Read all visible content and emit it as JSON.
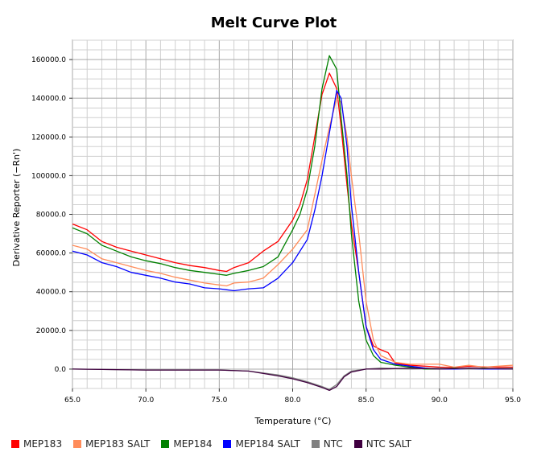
{
  "chart_data": {
    "type": "line",
    "title": "Melt Curve Plot",
    "xlabel": "Temperature (°C)",
    "ylabel": "Derivative Reporter (−Rn')",
    "xlim": [
      65.0,
      95.0
    ],
    "ylim": [
      -10000,
      170000
    ],
    "x_ticks": [
      "65.0",
      "70.0",
      "75.0",
      "80.0",
      "85.0",
      "90.0",
      "95.0"
    ],
    "y_ticks": [
      "0.0",
      "20000.0",
      "40000.0",
      "60000.0",
      "80000.0",
      "100000.0",
      "120000.0",
      "140000.0",
      "160000.0"
    ],
    "grid": true,
    "legend_position": "bottom",
    "series": [
      {
        "name": "MEP183",
        "color": "#ff0000",
        "points": [
          [
            65,
            75000
          ],
          [
            66,
            72000
          ],
          [
            67,
            66000
          ],
          [
            68,
            63000
          ],
          [
            69,
            61000
          ],
          [
            70,
            59000
          ],
          [
            71,
            57000
          ],
          [
            72,
            55000
          ],
          [
            73,
            53500
          ],
          [
            74,
            52500
          ],
          [
            75,
            51000
          ],
          [
            75.5,
            50500
          ],
          [
            76,
            52500
          ],
          [
            77,
            55000
          ],
          [
            78,
            61000
          ],
          [
            79,
            66000
          ],
          [
            80,
            77000
          ],
          [
            80.5,
            85000
          ],
          [
            81,
            98000
          ],
          [
            81.5,
            120000
          ],
          [
            82,
            142000
          ],
          [
            82.5,
            153000
          ],
          [
            83,
            145000
          ],
          [
            83.3,
            125000
          ],
          [
            83.7,
            95000
          ],
          [
            84,
            75000
          ],
          [
            84.5,
            50000
          ],
          [
            85,
            22000
          ],
          [
            85.5,
            12000
          ],
          [
            86,
            10000
          ],
          [
            86.5,
            8500
          ],
          [
            87,
            3000
          ],
          [
            88,
            2000
          ],
          [
            89,
            1500
          ],
          [
            90,
            1000
          ],
          [
            91,
            800
          ],
          [
            92,
            1500
          ],
          [
            93,
            1200
          ],
          [
            94,
            1000
          ],
          [
            95,
            1000
          ]
        ]
      },
      {
        "name": "MEP183 SALT",
        "color": "#ff8c5a",
        "points": [
          [
            65,
            64000
          ],
          [
            66,
            62000
          ],
          [
            67,
            57000
          ],
          [
            68,
            55000
          ],
          [
            69,
            53000
          ],
          [
            70,
            51000
          ],
          [
            71,
            49500
          ],
          [
            72,
            47500
          ],
          [
            73,
            46000
          ],
          [
            74,
            44500
          ],
          [
            75,
            43500
          ],
          [
            75.5,
            43000
          ],
          [
            76,
            44500
          ],
          [
            77,
            45000
          ],
          [
            78,
            47000
          ],
          [
            79,
            54000
          ],
          [
            80,
            62000
          ],
          [
            81,
            72000
          ],
          [
            81.5,
            90000
          ],
          [
            82,
            108000
          ],
          [
            82.5,
            125000
          ],
          [
            83,
            140000
          ],
          [
            83.3,
            138000
          ],
          [
            83.7,
            120000
          ],
          [
            84,
            100000
          ],
          [
            84.5,
            70000
          ],
          [
            85,
            35000
          ],
          [
            85.5,
            15000
          ],
          [
            86,
            7000
          ],
          [
            87,
            3500
          ],
          [
            88,
            2500
          ],
          [
            89,
            2500
          ],
          [
            90,
            2500
          ],
          [
            91,
            1000
          ],
          [
            92,
            2000
          ],
          [
            93,
            1000
          ],
          [
            94,
            1500
          ],
          [
            95,
            2000
          ]
        ]
      },
      {
        "name": "MEP184",
        "color": "#008000",
        "points": [
          [
            65,
            73000
          ],
          [
            66,
            70000
          ],
          [
            67,
            64000
          ],
          [
            68,
            61000
          ],
          [
            69,
            58000
          ],
          [
            70,
            56000
          ],
          [
            71,
            54500
          ],
          [
            72,
            52500
          ],
          [
            73,
            51000
          ],
          [
            74,
            50000
          ],
          [
            75,
            49000
          ],
          [
            75.5,
            48500
          ],
          [
            76,
            49500
          ],
          [
            77,
            51000
          ],
          [
            78,
            53000
          ],
          [
            79,
            58000
          ],
          [
            80,
            72000
          ],
          [
            80.5,
            80000
          ],
          [
            81,
            93000
          ],
          [
            81.5,
            115000
          ],
          [
            82,
            145000
          ],
          [
            82.5,
            162000
          ],
          [
            83,
            155000
          ],
          [
            83.3,
            130000
          ],
          [
            83.7,
            100000
          ],
          [
            84,
            70000
          ],
          [
            84.5,
            35000
          ],
          [
            85,
            15000
          ],
          [
            85.5,
            7000
          ],
          [
            86,
            3500
          ],
          [
            87,
            2000
          ],
          [
            88,
            1000
          ],
          [
            89,
            0
          ],
          [
            90,
            0
          ],
          [
            91,
            500
          ],
          [
            92,
            0
          ],
          [
            93,
            500
          ],
          [
            94,
            0
          ],
          [
            95,
            0
          ]
        ]
      },
      {
        "name": "MEP184 SALT",
        "color": "#0000ff",
        "points": [
          [
            65,
            61000
          ],
          [
            66,
            59000
          ],
          [
            67,
            55000
          ],
          [
            68,
            53000
          ],
          [
            69,
            50000
          ],
          [
            70,
            48500
          ],
          [
            71,
            47000
          ],
          [
            72,
            45000
          ],
          [
            73,
            44000
          ],
          [
            74,
            42000
          ],
          [
            75,
            41500
          ],
          [
            75.5,
            41000
          ],
          [
            76,
            40500
          ],
          [
            77,
            41500
          ],
          [
            78,
            42000
          ],
          [
            79,
            47000
          ],
          [
            80,
            55000
          ],
          [
            81,
            67000
          ],
          [
            81.5,
            82000
          ],
          [
            82,
            100000
          ],
          [
            82.5,
            122000
          ],
          [
            83,
            144000
          ],
          [
            83.3,
            140000
          ],
          [
            83.7,
            115000
          ],
          [
            84,
            85000
          ],
          [
            84.5,
            50000
          ],
          [
            85,
            22000
          ],
          [
            85.5,
            10000
          ],
          [
            86,
            5000
          ],
          [
            87,
            2500
          ],
          [
            88,
            1500
          ],
          [
            89,
            500
          ],
          [
            90,
            0
          ],
          [
            91,
            0
          ],
          [
            92,
            0
          ],
          [
            93,
            0
          ],
          [
            94,
            0
          ],
          [
            95,
            0
          ]
        ]
      },
      {
        "name": "NTC",
        "color": "#808080",
        "points": [
          [
            65,
            0
          ],
          [
            70,
            -500
          ],
          [
            75,
            -500
          ],
          [
            77,
            -1000
          ],
          [
            79,
            -3000
          ],
          [
            80,
            -4500
          ],
          [
            81,
            -6500
          ],
          [
            82,
            -9000
          ],
          [
            82.5,
            -10500
          ],
          [
            83,
            -8000
          ],
          [
            83.5,
            -3500
          ],
          [
            84,
            -1000
          ],
          [
            85,
            0
          ],
          [
            86,
            500
          ],
          [
            88,
            0
          ],
          [
            90,
            500
          ],
          [
            92,
            0
          ],
          [
            95,
            500
          ]
        ]
      },
      {
        "name": "NTC SALT",
        "color": "#400040",
        "points": [
          [
            65,
            0
          ],
          [
            70,
            -500
          ],
          [
            75,
            -500
          ],
          [
            77,
            -1000
          ],
          [
            79,
            -3500
          ],
          [
            80,
            -5000
          ],
          [
            81,
            -7000
          ],
          [
            82,
            -9500
          ],
          [
            82.5,
            -11000
          ],
          [
            83,
            -9000
          ],
          [
            83.5,
            -4000
          ],
          [
            84,
            -1500
          ],
          [
            85,
            0
          ],
          [
            86,
            0
          ],
          [
            88,
            500
          ],
          [
            90,
            0
          ],
          [
            92,
            500
          ],
          [
            95,
            0
          ]
        ]
      }
    ]
  }
}
